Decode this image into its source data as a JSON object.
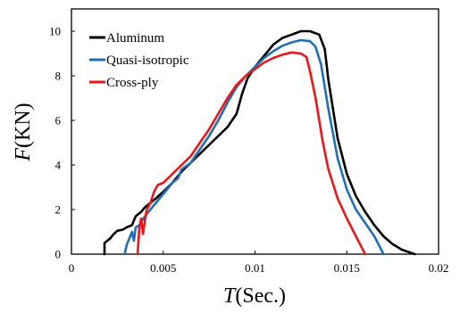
{
  "chart_data": {
    "type": "line",
    "xlabel_symbol": "T",
    "xlabel_unit": "(Sec.)",
    "ylabel_symbol": "F",
    "ylabel_unit": "(KN)",
    "xlim": [
      0,
      0.02
    ],
    "ylim": [
      0,
      11
    ],
    "x_ticks": [
      0,
      0.005,
      0.01,
      0.015,
      0.02
    ],
    "x_tick_labels": [
      "0",
      "0.005",
      "0.01",
      "0.015",
      "0.02"
    ],
    "y_ticks": [
      0,
      2,
      4,
      6,
      8,
      10
    ],
    "y_tick_labels": [
      "0",
      "2",
      "4",
      "6",
      "8",
      "10"
    ],
    "grid": false,
    "legend_position": "top-left",
    "series": [
      {
        "name": "Aluminum",
        "color": "#000000",
        "points": [
          [
            0.0018,
            0.0
          ],
          [
            0.0018,
            0.5
          ],
          [
            0.0021,
            0.7
          ],
          [
            0.0023,
            0.9
          ],
          [
            0.0025,
            1.05
          ],
          [
            0.0028,
            1.1
          ],
          [
            0.003,
            1.2
          ],
          [
            0.0033,
            1.3
          ],
          [
            0.0035,
            1.7
          ],
          [
            0.0038,
            1.9
          ],
          [
            0.004,
            2.1
          ],
          [
            0.0043,
            2.3
          ],
          [
            0.0046,
            2.5
          ],
          [
            0.005,
            2.8
          ],
          [
            0.0055,
            3.2
          ],
          [
            0.006,
            3.7
          ],
          [
            0.0065,
            4.1
          ],
          [
            0.007,
            4.5
          ],
          [
            0.0075,
            4.9
          ],
          [
            0.008,
            5.3
          ],
          [
            0.0085,
            5.7
          ],
          [
            0.009,
            6.3
          ],
          [
            0.0093,
            7.2
          ],
          [
            0.0096,
            7.9
          ],
          [
            0.01,
            8.4
          ],
          [
            0.0105,
            8.9
          ],
          [
            0.011,
            9.4
          ],
          [
            0.0115,
            9.7
          ],
          [
            0.012,
            9.85
          ],
          [
            0.0125,
            10.0
          ],
          [
            0.013,
            10.0
          ],
          [
            0.0135,
            9.85
          ],
          [
            0.0138,
            9.2
          ],
          [
            0.014,
            7.8
          ],
          [
            0.0145,
            5.2
          ],
          [
            0.015,
            3.6
          ],
          [
            0.0155,
            2.6
          ],
          [
            0.016,
            1.9
          ],
          [
            0.0165,
            1.3
          ],
          [
            0.017,
            0.8
          ],
          [
            0.0175,
            0.45
          ],
          [
            0.018,
            0.2
          ],
          [
            0.0187,
            0.0
          ]
        ]
      },
      {
        "name": "Quasi-isotropic",
        "color": "#1f6fb4",
        "points": [
          [
            0.0029,
            0.0
          ],
          [
            0.003,
            0.4
          ],
          [
            0.0032,
            0.8
          ],
          [
            0.0033,
            1.0
          ],
          [
            0.0034,
            0.6
          ],
          [
            0.0035,
            1.2
          ],
          [
            0.0037,
            1.3
          ],
          [
            0.004,
            1.7
          ],
          [
            0.0042,
            1.9
          ],
          [
            0.0045,
            2.2
          ],
          [
            0.005,
            2.7
          ],
          [
            0.0055,
            3.2
          ],
          [
            0.0058,
            3.4
          ],
          [
            0.006,
            3.8
          ],
          [
            0.0065,
            4.1
          ],
          [
            0.007,
            4.7
          ],
          [
            0.0075,
            5.3
          ],
          [
            0.008,
            6.0
          ],
          [
            0.0085,
            6.8
          ],
          [
            0.009,
            7.5
          ],
          [
            0.0095,
            8.0
          ],
          [
            0.01,
            8.4
          ],
          [
            0.0105,
            8.8
          ],
          [
            0.011,
            9.1
          ],
          [
            0.0115,
            9.35
          ],
          [
            0.012,
            9.5
          ],
          [
            0.0125,
            9.6
          ],
          [
            0.013,
            9.55
          ],
          [
            0.0133,
            9.3
          ],
          [
            0.0136,
            8.5
          ],
          [
            0.014,
            6.5
          ],
          [
            0.0145,
            4.3
          ],
          [
            0.015,
            2.9
          ],
          [
            0.0155,
            2.0
          ],
          [
            0.016,
            1.4
          ],
          [
            0.0165,
            0.8
          ],
          [
            0.017,
            0.0
          ]
        ]
      },
      {
        "name": "Cross-ply",
        "color": "#e8171b",
        "points": [
          [
            0.0036,
            0.0
          ],
          [
            0.0037,
            1.2
          ],
          [
            0.0038,
            1.6
          ],
          [
            0.0039,
            0.9
          ],
          [
            0.004,
            1.5
          ],
          [
            0.0041,
            2.0
          ],
          [
            0.0043,
            2.3
          ],
          [
            0.0045,
            2.8
          ],
          [
            0.0047,
            3.1
          ],
          [
            0.005,
            3.2
          ],
          [
            0.0055,
            3.6
          ],
          [
            0.006,
            4.0
          ],
          [
            0.0065,
            4.4
          ],
          [
            0.007,
            5.0
          ],
          [
            0.0075,
            5.6
          ],
          [
            0.008,
            6.3
          ],
          [
            0.0085,
            7.0
          ],
          [
            0.009,
            7.6
          ],
          [
            0.0095,
            8.0
          ],
          [
            0.01,
            8.3
          ],
          [
            0.0105,
            8.6
          ],
          [
            0.011,
            8.8
          ],
          [
            0.0115,
            8.95
          ],
          [
            0.012,
            9.05
          ],
          [
            0.0125,
            9.0
          ],
          [
            0.0128,
            8.85
          ],
          [
            0.013,
            8.2
          ],
          [
            0.0133,
            7.0
          ],
          [
            0.0137,
            5.0
          ],
          [
            0.014,
            3.8
          ],
          [
            0.0145,
            2.5
          ],
          [
            0.015,
            1.6
          ],
          [
            0.0155,
            0.8
          ],
          [
            0.016,
            0.0
          ]
        ]
      }
    ]
  }
}
